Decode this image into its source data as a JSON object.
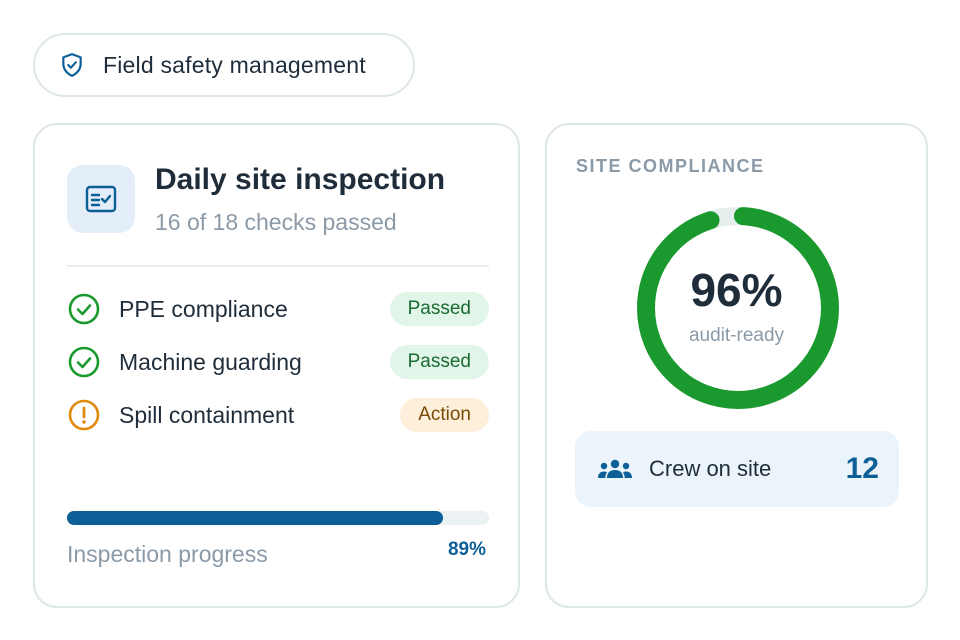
{
  "header": {
    "title": "Field safety management"
  },
  "inspection": {
    "title": "Daily site inspection",
    "subtitle": "16 of 18 checks passed",
    "checks": [
      {
        "label": "PPE compliance",
        "status": "Passed",
        "state": "pass"
      },
      {
        "label": "Machine guarding",
        "status": "Passed",
        "state": "pass"
      },
      {
        "label": "Spill containment",
        "status": "Action",
        "state": "action"
      }
    ],
    "progress_label": "Inspection progress",
    "progress_value": 0.89,
    "progress_text": "89%"
  },
  "compliance": {
    "title": "SITE COMPLIANCE",
    "percent_text": "96%",
    "percent_value": 0.96,
    "sublabel": "audit-ready",
    "crew_label": "Crew on site",
    "crew_count": "12"
  },
  "colors": {
    "accent": "#0c5f97",
    "success": "#1a9a2e",
    "warning": "#e08a10"
  }
}
